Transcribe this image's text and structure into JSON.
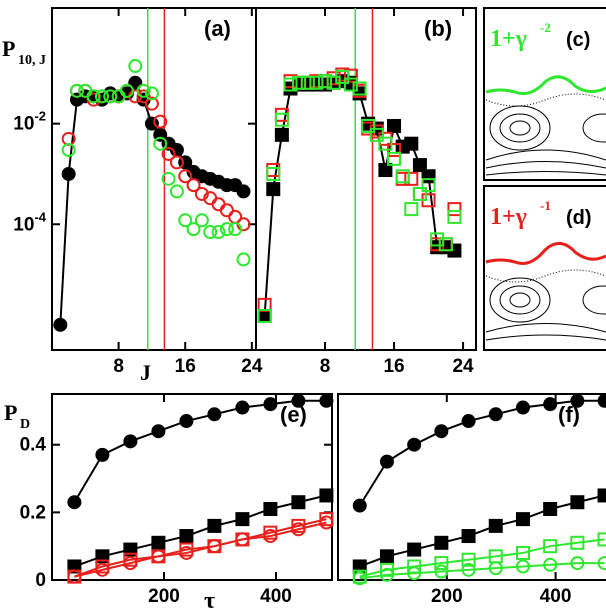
{
  "colors": {
    "black": "#000000",
    "red": "#e8201c",
    "green": "#2ee82e"
  },
  "top_y_label_main": "P",
  "top_y_label_sub": "10, J",
  "top_x_label": "J",
  "bottom_y_label_main": "P",
  "bottom_y_label_sub": "D",
  "bottom_x_label": "τ",
  "inset_c": {
    "panel_label": "(c)",
    "formula_base": "1+γ",
    "formula_exp": "-2",
    "formula_color": "green"
  },
  "inset_d": {
    "panel_label": "(d)",
    "formula_base": "1+γ",
    "formula_exp": "-1",
    "formula_color": "red"
  },
  "chart_data": [
    {
      "panel": "(a)",
      "type": "scatter",
      "x_axis": {
        "range": [
          0,
          24
        ],
        "ticks": [
          8,
          16,
          24
        ],
        "label": "J"
      },
      "y_axis": {
        "scale": "log",
        "range": [
          1e-06,
          1
        ],
        "ticks": [
          0.01,
          0.0001
        ],
        "tick_labels": [
          "10^-2",
          "10^-4"
        ]
      },
      "vlines": [
        {
          "x": 11.5,
          "color": "green"
        },
        {
          "x": 13.5,
          "color": "red"
        }
      ],
      "series": [
        {
          "marker": "filled-circle",
          "color": "black",
          "line": true,
          "x": [
            1,
            2,
            3,
            4,
            5,
            6,
            7,
            8,
            9,
            10,
            11,
            12,
            13,
            14,
            15,
            16,
            17,
            18,
            19,
            20,
            21,
            22,
            23
          ],
          "y": [
            1e-06,
            0.001,
            0.03,
            0.035,
            0.035,
            0.03,
            0.04,
            0.035,
            0.04,
            0.065,
            0.03,
            0.01,
            0.006,
            0.004,
            0.003,
            0.0017,
            0.0011,
            0.0009,
            0.0008,
            0.0007,
            0.0006,
            0.0006,
            0.00045
          ]
        },
        {
          "marker": "open-circle",
          "color": "red",
          "x": [
            2,
            3,
            4,
            5,
            6,
            7,
            8,
            9,
            10,
            11,
            12,
            13,
            14,
            15,
            16,
            17,
            18,
            19,
            20,
            21,
            22,
            23
          ],
          "y": [
            0.005,
            0.045,
            0.045,
            0.03,
            0.035,
            0.035,
            0.035,
            0.045,
            0.035,
            0.035,
            0.025,
            0.011,
            0.0025,
            0.0017,
            0.0009,
            0.0006,
            0.0004,
            0.00033,
            0.00025,
            0.00019,
            0.00014,
            0.0001
          ]
        },
        {
          "marker": "open-circle",
          "color": "green",
          "x": [
            2,
            3,
            4,
            5,
            6,
            7,
            8,
            9,
            10,
            11,
            12,
            13,
            14,
            15,
            16,
            17,
            18,
            19,
            20,
            21,
            22,
            23
          ],
          "y": [
            0.003,
            0.045,
            0.045,
            0.035,
            0.035,
            0.035,
            0.035,
            0.045,
            0.14,
            0.045,
            0.04,
            0.004,
            0.0008,
            0.00045,
            0.00012,
            8e-05,
            0.00012,
            7e-05,
            7e-05,
            8e-05,
            8e-05,
            2e-05
          ]
        }
      ]
    },
    {
      "panel": "(b)",
      "type": "scatter",
      "x_axis": {
        "range": [
          0,
          24
        ],
        "ticks": [
          8,
          16,
          24
        ]
      },
      "y_axis": {
        "scale": "log",
        "range": [
          1e-06,
          1
        ]
      },
      "vlines": [
        {
          "x": 11.5,
          "color": "green"
        },
        {
          "x": 13.5,
          "color": "red"
        }
      ],
      "series": [
        {
          "marker": "filled-square",
          "color": "black",
          "line": true,
          "x": [
            1,
            2,
            3,
            4,
            5,
            6,
            7,
            8,
            9,
            10,
            11,
            12,
            13,
            14,
            15,
            16,
            17,
            18,
            19,
            20,
            21,
            22,
            23
          ],
          "y": [
            1.5e-06,
            0.0005,
            0.006,
            0.05,
            0.06,
            0.06,
            0.06,
            0.06,
            0.065,
            0.07,
            0.065,
            0.04,
            0.01,
            0.008,
            0.0012,
            0.009,
            0.0035,
            0.004,
            0.0015,
            0.0009,
            3.5e-05,
            3.5e-05,
            3e-05
          ]
        },
        {
          "marker": "open-square",
          "color": "red",
          "x": [
            1,
            2,
            3,
            4,
            5,
            6,
            7,
            8,
            9,
            10,
            11,
            12,
            13,
            14,
            15,
            16,
            17,
            18,
            19,
            20,
            21,
            22,
            23
          ],
          "y": [
            2.5e-06,
            0.0012,
            0.015,
            0.07,
            0.065,
            0.065,
            0.07,
            0.07,
            0.08,
            0.095,
            0.09,
            0.045,
            0.008,
            0.007,
            0.005,
            0.003,
            0.0008,
            0.0008,
            0.0004,
            0.0003,
            4e-05,
            4e-05,
            0.0002
          ]
        },
        {
          "marker": "open-square",
          "color": "green",
          "x": [
            1,
            2,
            3,
            4,
            5,
            6,
            7,
            8,
            9,
            10,
            11,
            12,
            13,
            14,
            15,
            16,
            17,
            18,
            19,
            20,
            21,
            22,
            23
          ],
          "y": [
            1.5e-06,
            0.001,
            0.012,
            0.06,
            0.065,
            0.065,
            0.065,
            0.07,
            0.065,
            0.085,
            0.06,
            0.05,
            0.009,
            0.006,
            0.004,
            0.002,
            0.0009,
            0.0002,
            0.0004,
            0.0006,
            5e-05,
            4e-05,
            0.00014
          ]
        }
      ]
    },
    {
      "panel": "(e)",
      "type": "line",
      "x_axis": {
        "range": [
          0,
          500
        ],
        "ticks": [
          200,
          400
        ],
        "label": "τ"
      },
      "y_axis": {
        "range": [
          0,
          0.55
        ],
        "ticks": [
          0,
          0.2,
          0.4
        ]
      },
      "series": [
        {
          "marker": "filled-circle",
          "color": "black",
          "x": [
            40,
            90,
            140,
            190,
            240,
            290,
            340,
            390,
            440,
            490
          ],
          "y": [
            0.23,
            0.37,
            0.41,
            0.44,
            0.47,
            0.49,
            0.51,
            0.52,
            0.53,
            0.53
          ]
        },
        {
          "marker": "filled-square",
          "color": "black",
          "x": [
            40,
            90,
            140,
            190,
            240,
            290,
            340,
            390,
            440,
            490
          ],
          "y": [
            0.04,
            0.07,
            0.09,
            0.11,
            0.13,
            0.16,
            0.18,
            0.21,
            0.23,
            0.25
          ]
        },
        {
          "marker": "open-square",
          "color": "red",
          "x": [
            40,
            90,
            140,
            190,
            240,
            290,
            340,
            390,
            440,
            490
          ],
          "y": [
            0.01,
            0.04,
            0.06,
            0.07,
            0.09,
            0.1,
            0.12,
            0.14,
            0.16,
            0.18
          ]
        },
        {
          "marker": "open-circle",
          "color": "red",
          "x": [
            40,
            90,
            140,
            190,
            240,
            290,
            340,
            390,
            440,
            490
          ],
          "y": [
            0.01,
            0.03,
            0.05,
            0.07,
            0.08,
            0.1,
            0.12,
            0.13,
            0.15,
            0.17
          ]
        }
      ]
    },
    {
      "panel": "(f)",
      "type": "line",
      "x_axis": {
        "range": [
          0,
          500
        ],
        "ticks": [
          200,
          400
        ],
        "label": "τ"
      },
      "y_axis": {
        "range": [
          0,
          0.55
        ]
      },
      "series": [
        {
          "marker": "filled-circle",
          "color": "black",
          "x": [
            40,
            90,
            140,
            190,
            240,
            290,
            340,
            390,
            440,
            490
          ],
          "y": [
            0.22,
            0.35,
            0.4,
            0.44,
            0.47,
            0.49,
            0.51,
            0.52,
            0.53,
            0.53
          ]
        },
        {
          "marker": "filled-square",
          "color": "black",
          "x": [
            40,
            90,
            140,
            190,
            240,
            290,
            340,
            390,
            440,
            490
          ],
          "y": [
            0.04,
            0.07,
            0.09,
            0.11,
            0.13,
            0.16,
            0.18,
            0.21,
            0.23,
            0.25
          ]
        },
        {
          "marker": "open-square",
          "color": "green",
          "x": [
            40,
            90,
            140,
            190,
            240,
            290,
            340,
            390,
            440,
            490
          ],
          "y": [
            0.01,
            0.03,
            0.04,
            0.05,
            0.06,
            0.07,
            0.08,
            0.1,
            0.11,
            0.12
          ]
        },
        {
          "marker": "open-circle",
          "color": "green",
          "x": [
            40,
            90,
            140,
            190,
            240,
            290,
            340,
            390,
            440,
            490
          ],
          "y": [
            0.005,
            0.015,
            0.02,
            0.025,
            0.03,
            0.035,
            0.04,
            0.045,
            0.05,
            0.05
          ]
        }
      ]
    }
  ]
}
